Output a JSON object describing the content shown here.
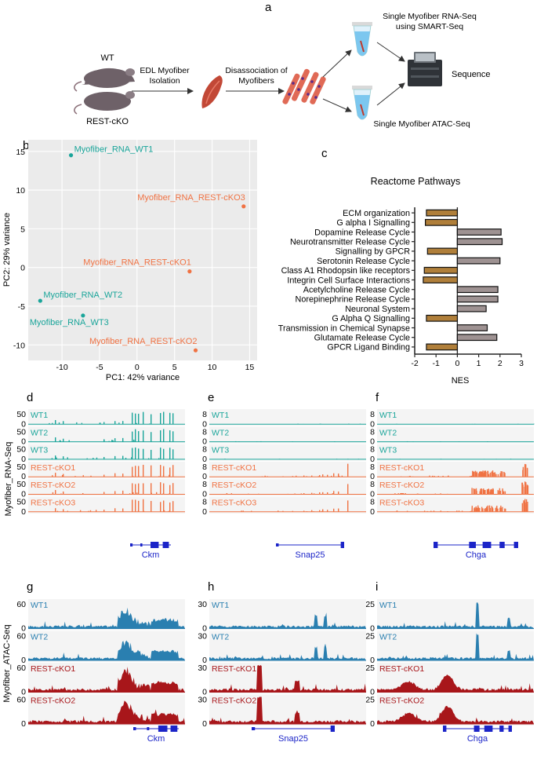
{
  "panel_letters": [
    "a",
    "b",
    "c",
    "d",
    "e",
    "f",
    "g",
    "h",
    "i"
  ],
  "panel_a": {
    "wt": "WT",
    "rest_cko": "REST-cKO",
    "isolation_line1": "EDL Myofiber",
    "isolation_line2": "Isolation",
    "dissoc_line1": "Disassociation of",
    "dissoc_line2": "Myofibers",
    "rnaseq_line1": "Single Myofiber RNA-Seq",
    "rnaseq_line2": "using SMART-Seq",
    "sequence": "Sequence",
    "atacseq": "Single Myofiber ATAC-Seq"
  },
  "colors": {
    "wt_rna": "#1aa59a",
    "cko_rna": "#f07243",
    "wt_atac": "#2a7fb0",
    "cko_atac": "#a8161a",
    "neg_bar": "#b07f3a",
    "pos_bar": "#9e9292",
    "gene": "#1b24c8",
    "pca_bg": "#ebebeb"
  },
  "chart_data": [
    {
      "id": "pca",
      "type": "scatter",
      "xlabel": "PC1: 42% variance",
      "ylabel": "PC2: 29% variance",
      "xlim": [
        -14.5,
        16
      ],
      "ylim": [
        -12,
        16.5
      ],
      "xticks": [
        -10,
        -5,
        0,
        5,
        10,
        15
      ],
      "yticks": [
        15,
        10,
        5,
        0,
        -5,
        -10
      ],
      "points": [
        {
          "label": "Myofiber_RNA_WT1",
          "x": -8.8,
          "y": 14.5,
          "group": "wt"
        },
        {
          "label": "Myofiber_RNA_REST-cKO3",
          "x": 14.2,
          "y": 7.9,
          "group": "cko"
        },
        {
          "label": "Myofiber_RNA_REST-cKO1",
          "x": 7.0,
          "y": -0.5,
          "group": "cko"
        },
        {
          "label": "Myofiber_RNA_WT2",
          "x": -12.9,
          "y": -4.3,
          "group": "wt"
        },
        {
          "label": "Myofiber_RNA_WT3",
          "x": -7.2,
          "y": -6.2,
          "group": "wt"
        },
        {
          "label": "Myofiber_RNA_REST-cKO2",
          "x": 7.8,
          "y": -10.7,
          "group": "cko"
        }
      ]
    },
    {
      "id": "reactome",
      "type": "bar",
      "orientation": "horizontal",
      "title": "Reactome Pathways",
      "xlabel": "NES",
      "xlim": [
        -2,
        3
      ],
      "xticks": [
        -2,
        -1,
        0,
        1,
        2,
        3
      ],
      "categories": [
        "ECM organization",
        "G alpha I Signalling",
        "Dopamine Release Cycle",
        "Neurotransmitter Release Cycle",
        "Signalling by GPCR",
        "Serotonin Release Cycle",
        "Class A1 Rhodopsin like receptors",
        "Integrin Cell Surface Interactions",
        "Acetylcholine Release Cycle",
        "Norepinephrine Release Cycle",
        "Neuronal System",
        "G Alpha Q Signalling",
        "Transmission in Chemical Synapse",
        "Glutamate Release Cycle",
        "GPCR Ligand Binding"
      ],
      "values": [
        -1.45,
        -1.5,
        2.05,
        2.1,
        -1.4,
        2.0,
        -1.55,
        -1.6,
        1.9,
        1.9,
        1.35,
        -1.45,
        1.4,
        1.85,
        -1.45
      ]
    }
  ],
  "side_labels": {
    "rna": "Myofiber_RNA-Seq",
    "atac": "Myofiber_ATAC-Seq"
  },
  "rna_groups": [
    {
      "letter": "d",
      "gene": "Ckm",
      "max": "50",
      "pattern": "ckm"
    },
    {
      "letter": "e",
      "gene": "Snap25",
      "max": "8",
      "pattern": "snap"
    },
    {
      "letter": "f",
      "gene": "Chga",
      "max": "8",
      "pattern": "chga"
    }
  ],
  "rna_tracks": [
    {
      "label": "WT1",
      "type": "wt"
    },
    {
      "label": "WT2",
      "type": "wt"
    },
    {
      "label": "WT3",
      "type": "wt"
    },
    {
      "label": "REST-cKO1",
      "type": "cko"
    },
    {
      "label": "REST-cKO2",
      "type": "cko"
    },
    {
      "label": "REST-cKO3",
      "type": "cko"
    }
  ],
  "atac_groups": [
    {
      "letter": "g",
      "gene": "Ckm",
      "max": "60",
      "pattern": "ckm"
    },
    {
      "letter": "h",
      "gene": "Snap25",
      "max": "30",
      "pattern": "snap"
    },
    {
      "letter": "i",
      "gene": "Chga",
      "max": "25",
      "pattern": "chga"
    }
  ],
  "atac_tracks": [
    {
      "label": "WT1",
      "type": "wt"
    },
    {
      "label": "WT2",
      "type": "wt"
    },
    {
      "label": "REST-cKO1",
      "type": "cko"
    },
    {
      "label": "REST-cKO2",
      "type": "cko"
    }
  ],
  "zero": "0"
}
